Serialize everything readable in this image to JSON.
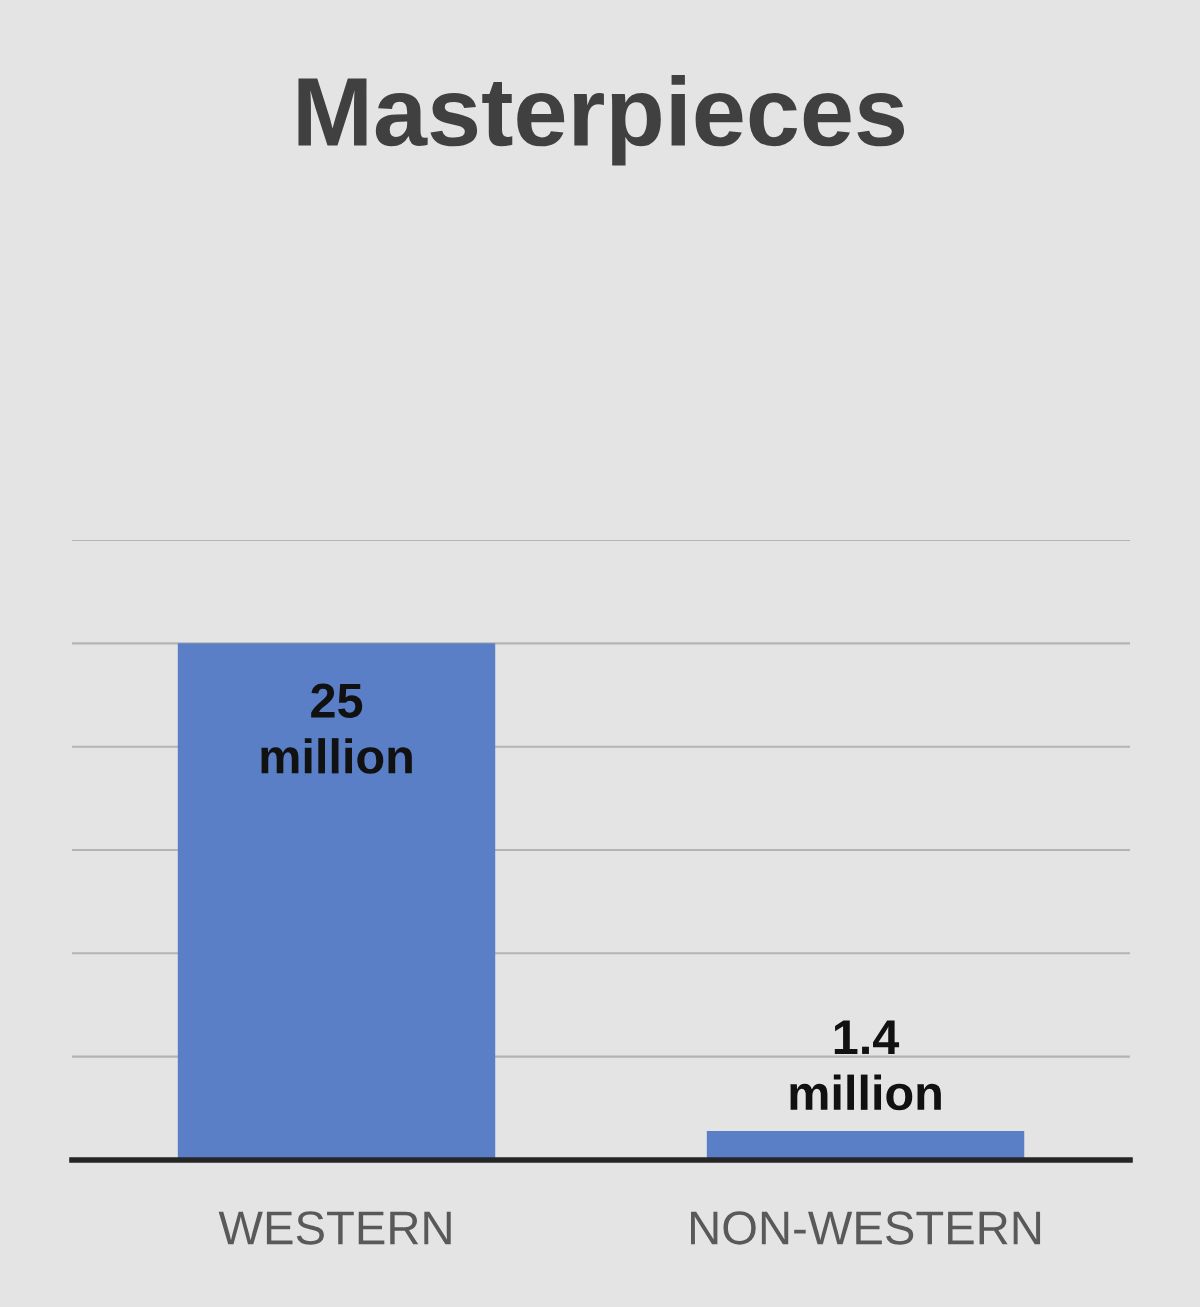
{
  "chart_data": {
    "type": "bar",
    "title": "Masterpieces",
    "categories": [
      "WESTERN",
      "NON-WESTERN"
    ],
    "values": [
      25000000,
      1400000
    ],
    "color": "#5a7fc6",
    "value_labels": [
      "25\nmillion",
      "1.4\nmillion"
    ],
    "ylim": [
      0,
      30000000
    ],
    "yticks": [
      {
        "value": 0,
        "label": null
      },
      {
        "value": 5000000,
        "label": null
      },
      {
        "value": 10000000,
        "label": null
      },
      {
        "value": 15000000,
        "label": null
      },
      {
        "value": 20000000,
        "label": null
      },
      {
        "value": 25000000,
        "label": null
      },
      {
        "value": 30000000,
        "label": null
      }
    ],
    "grid": "y",
    "tick_labels": "x",
    "legend": false
  }
}
